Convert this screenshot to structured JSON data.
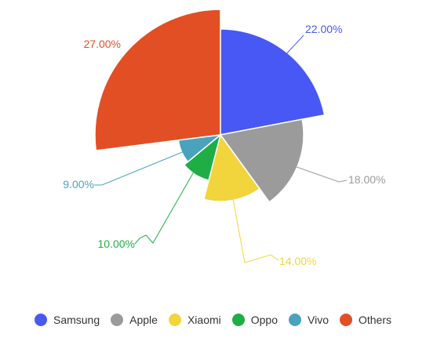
{
  "chart_data": {
    "type": "pie",
    "variant": "variable-radius",
    "series": [
      {
        "name": "Samsung",
        "value": 22.0,
        "label": "22.00%",
        "color": "#4858f5"
      },
      {
        "name": "Apple",
        "value": 18.0,
        "label": "18.00%",
        "color": "#9b9b9b"
      },
      {
        "name": "Xiaomi",
        "value": 14.0,
        "label": "14.00%",
        "color": "#f2d43d"
      },
      {
        "name": "Oppo",
        "value": 10.0,
        "label": "10.00%",
        "color": "#1fae45"
      },
      {
        "name": "Vivo",
        "value": 9.0,
        "label": "9.00%",
        "color": "#4aa3bd"
      },
      {
        "name": "Others",
        "value": 27.0,
        "label": "27.00%",
        "color": "#e24f25"
      }
    ],
    "legend_position": "bottom",
    "title": ""
  }
}
